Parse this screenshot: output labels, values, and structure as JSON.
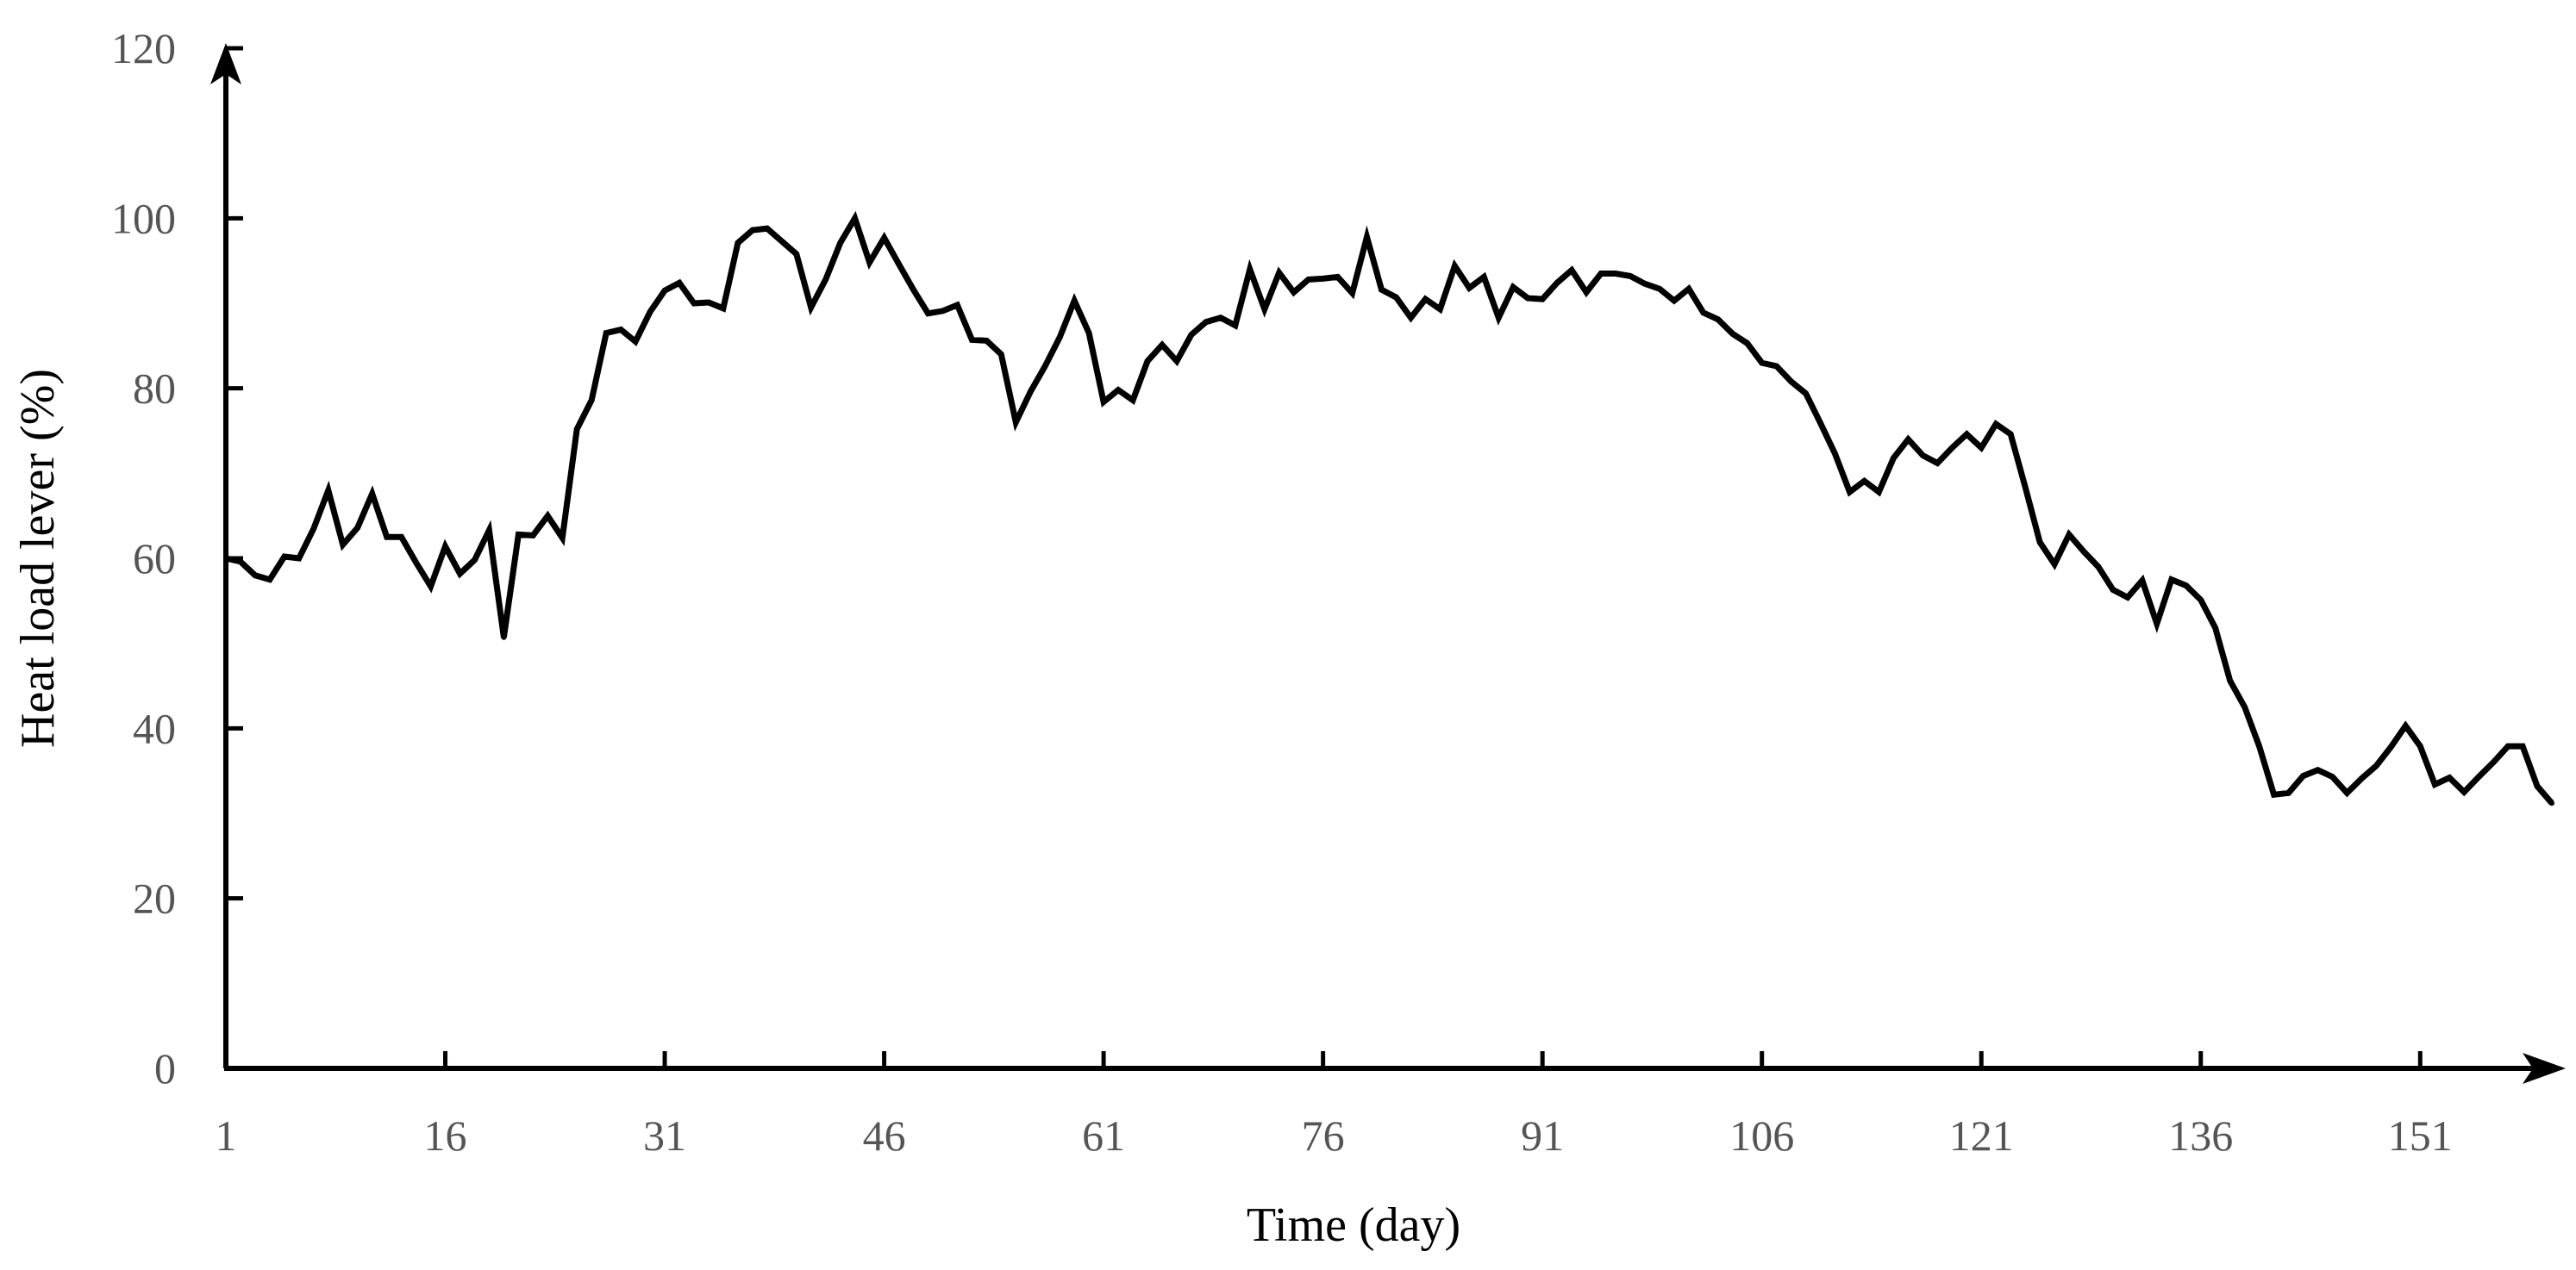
{
  "chart_data": {
    "type": "line",
    "title": "",
    "xlabel": "Time (day)",
    "ylabel": "Heat load lever (%)",
    "xlim": [
      1,
      156
    ],
    "ylim": [
      0,
      120
    ],
    "xticks": [
      1,
      16,
      31,
      46,
      61,
      76,
      91,
      106,
      121,
      136,
      151
    ],
    "yticks": [
      0,
      20,
      40,
      60,
      80,
      100,
      120
    ],
    "grid": false,
    "legend": "none",
    "line_color": "#000000",
    "series": [
      {
        "x": [
          1,
          2,
          3,
          4,
          5,
          6,
          7,
          8,
          9,
          10,
          11,
          12,
          13,
          14,
          15,
          16,
          17,
          18,
          19,
          20,
          21,
          22,
          23,
          24,
          25,
          26,
          27,
          28,
          29,
          30,
          31,
          32,
          33,
          34,
          35,
          36,
          37,
          38,
          39,
          40,
          41,
          42,
          43,
          44,
          45,
          46,
          47,
          48,
          49,
          50,
          51,
          52,
          53,
          54,
          55,
          56,
          57,
          58,
          59,
          60,
          61,
          62,
          63,
          64,
          65,
          66,
          67,
          68,
          69,
          70,
          71,
          72,
          73,
          74,
          75,
          76,
          77,
          78,
          79,
          80,
          81,
          82,
          83,
          84,
          85,
          86,
          87,
          88,
          89,
          90,
          91,
          92,
          93,
          94,
          95,
          96,
          97,
          98,
          99,
          100,
          101,
          102,
          103,
          104,
          105,
          106,
          107,
          108,
          109,
          110,
          111,
          112,
          113,
          114,
          115,
          116,
          117,
          118,
          119,
          120,
          121,
          122,
          123,
          124,
          125,
          126,
          127,
          128,
          129,
          130,
          131,
          132,
          133,
          134,
          135,
          136,
          137,
          138,
          139,
          140,
          141,
          142,
          143,
          144,
          145,
          146,
          147,
          148,
          149,
          150,
          151,
          152,
          153,
          154,
          155,
          156,
          157,
          158,
          159,
          160
        ],
        "values": [
          60,
          59.6,
          58,
          57.5,
          60.2,
          60,
          63.5,
          68,
          61.6,
          63.6,
          67.6,
          62.5,
          62.5,
          59.5,
          56.7,
          61.4,
          58.2,
          59.8,
          63.3,
          50.7,
          62.8,
          62.7,
          65,
          62.4,
          75.2,
          78.6,
          86.5,
          86.9,
          85.5,
          89,
          91.5,
          92.4,
          90,
          90.1,
          89.4,
          97.1,
          98.6,
          98.8,
          97.3,
          95.8,
          89.5,
          92.8,
          97.1,
          100,
          94.8,
          97.7,
          94.6,
          91.6,
          88.8,
          89.1,
          89.8,
          85.7,
          85.6,
          84,
          76,
          79.6,
          82.6,
          86,
          90.3,
          86.5,
          78.4,
          79.8,
          78.6,
          83.2,
          85.1,
          83.2,
          86.3,
          87.8,
          88.3,
          87.4,
          94,
          89.3,
          93.6,
          91.3,
          92.8,
          92.9,
          93.1,
          91.2,
          97.8,
          91.6,
          90.7,
          88.3,
          90.5,
          89.3,
          94.4,
          91.8,
          93.1,
          88.3,
          91.9,
          90.6,
          90.5,
          92.4,
          93.9,
          91.3,
          93.5,
          93.5,
          93.2,
          92.3,
          91.7,
          90.3,
          91.7,
          88.9,
          88.1,
          86.4,
          85.3,
          83,
          82.6,
          80.8,
          79.4,
          75.9,
          72.3,
          67.8,
          69.1,
          67.8,
          71.8,
          74,
          72.1,
          71.2,
          73,
          74.6,
          73,
          75.8,
          74.6,
          68.4,
          61.9,
          59.3,
          62.8,
          60.8,
          59,
          56.3,
          55.4,
          57.4,
          52.3,
          57.5,
          56.8,
          55.1,
          51.8,
          45.6,
          42.5,
          37.9,
          32.2,
          32.4,
          34.4,
          35.1,
          34.3,
          32.4,
          34.1,
          35.6,
          37.8,
          40.3,
          37.9,
          33.4,
          34.2,
          32.5,
          34.3,
          36,
          37.9,
          37.9,
          33.2,
          31.2
        ]
      }
    ]
  }
}
